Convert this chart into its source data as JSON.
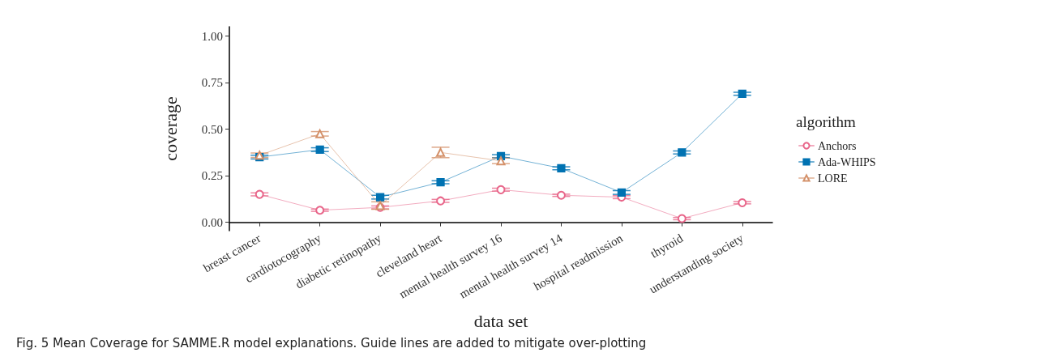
{
  "chart_data": {
    "type": "line",
    "xlabel": "data set",
    "ylabel": "coverage",
    "legend_title": "algorithm",
    "legend": "right",
    "grid": false,
    "categories": [
      "breast cancer",
      "cardiotocography",
      "diabetic retinopathy",
      "cleveland heart",
      "mental health survey 16",
      "mental health survey 14",
      "hospital readmission",
      "thyroid",
      "understanding society"
    ],
    "ylim": [
      -0.045,
      1.05
    ],
    "yticks": [
      {
        "value": 0,
        "label": "0.00"
      },
      {
        "value": 0.25,
        "label": "0.25"
      },
      {
        "value": 0.5,
        "label": "0.50"
      },
      {
        "value": 0.75,
        "label": "0.75"
      },
      {
        "value": 1,
        "label": "1.00"
      }
    ],
    "series": [
      {
        "name": "Anchors",
        "color": "#e8668a",
        "marker": "circle",
        "values": [
          0.15,
          0.065,
          0.08,
          0.115,
          0.175,
          0.145,
          0.135,
          0.02,
          0.105
        ],
        "errors": [
          0.008,
          0.006,
          0.008,
          0.008,
          0.008,
          0.006,
          0.008,
          0.006,
          0.006
        ]
      },
      {
        "name": "Ada-WHIPS",
        "color": "#0072b2",
        "marker": "square",
        "values": [
          0.35,
          0.39,
          0.135,
          0.215,
          0.355,
          0.29,
          0.16,
          0.375,
          0.69
        ],
        "errors": [
          0.01,
          0.01,
          0.01,
          0.008,
          0.008,
          0.008,
          0.01,
          0.008,
          0.008
        ]
      },
      {
        "name": "LORE",
        "color": "#d4916a",
        "marker": "triangle",
        "values": [
          0.36,
          0.475,
          0.09,
          0.375,
          0.33,
          null,
          null,
          null,
          null
        ],
        "errors": [
          0.012,
          0.012,
          0.02,
          0.028,
          0.015,
          null,
          null,
          null,
          null
        ]
      }
    ],
    "annotations": [
      "Fig. 5 Mean Coverage for SAMME.R model explanations. Guide lines are added to mitigate over-plotting"
    ]
  }
}
